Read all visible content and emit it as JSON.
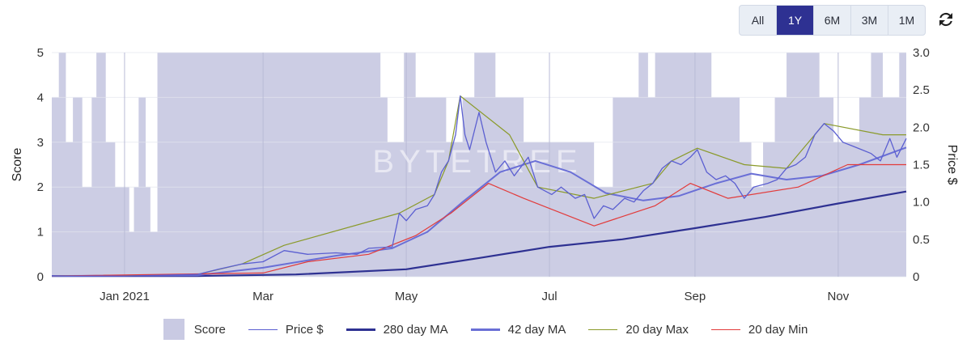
{
  "range_buttons": [
    {
      "label": "All",
      "active": false
    },
    {
      "label": "1Y",
      "active": true
    },
    {
      "label": "6M",
      "active": false
    },
    {
      "label": "3M",
      "active": false
    },
    {
      "label": "1M",
      "active": false
    }
  ],
  "refresh_icon": "refresh-icon",
  "watermark": "BYTETREE",
  "colors": {
    "score_fill": "#c9cae3",
    "price": "#5b5fd1",
    "ma280": "#2e3192",
    "ma42": "#6a6fd6",
    "max20": "#8a9a2a",
    "min20": "#e23b3b"
  },
  "legend": [
    {
      "key": "score",
      "label": "Score"
    },
    {
      "key": "price",
      "label": "Price $"
    },
    {
      "key": "ma280",
      "label": "280 day MA"
    },
    {
      "key": "ma42",
      "label": "42 day MA"
    },
    {
      "key": "max20",
      "label": "20 day Max"
    },
    {
      "key": "min20",
      "label": "20 day Min"
    }
  ],
  "chart_data": {
    "type": "line",
    "xlabel": "",
    "ylabel_left": "Score",
    "ylabel_right": "Price $",
    "x_ticks": [
      "Jan 2021",
      "Mar",
      "May",
      "Jul",
      "Sep",
      "Nov"
    ],
    "x_tick_dates": [
      "2021-01-01",
      "2021-03-01",
      "2021-05-01",
      "2021-07-01",
      "2021-09-01",
      "2021-11-01"
    ],
    "x_range": [
      "2020-12-01",
      "2021-11-30"
    ],
    "ylim_left": [
      0,
      5
    ],
    "ylim_right": [
      0,
      3.0
    ],
    "left_ticks": [
      "0",
      "1",
      "2",
      "3",
      "4",
      "5"
    ],
    "right_ticks": [
      "0",
      "0.5",
      "1.0",
      "1.5",
      "2.0",
      "2.5",
      "3.0"
    ],
    "grid": true,
    "legend_position": "bottom",
    "series": [
      {
        "key": "score",
        "name": "Score",
        "kind": "step-area",
        "axis": "left",
        "points": [
          [
            "2020-12-01",
            4
          ],
          [
            "2020-12-04",
            5
          ],
          [
            "2020-12-07",
            3
          ],
          [
            "2020-12-10",
            4
          ],
          [
            "2020-12-14",
            2
          ],
          [
            "2020-12-18",
            4
          ],
          [
            "2020-12-20",
            5
          ],
          [
            "2020-12-24",
            3
          ],
          [
            "2020-12-28",
            2
          ],
          [
            "2021-01-03",
            1
          ],
          [
            "2021-01-05",
            2
          ],
          [
            "2021-01-07",
            4
          ],
          [
            "2021-01-10",
            2
          ],
          [
            "2021-01-12",
            1
          ],
          [
            "2021-01-15",
            5
          ],
          [
            "2021-04-20",
            4
          ],
          [
            "2021-04-23",
            3
          ],
          [
            "2021-04-30",
            5
          ],
          [
            "2021-05-05",
            4
          ],
          [
            "2021-05-18",
            3
          ],
          [
            "2021-05-25",
            4
          ],
          [
            "2021-05-30",
            5
          ],
          [
            "2021-06-08",
            4
          ],
          [
            "2021-06-20",
            3
          ],
          [
            "2021-07-20",
            2
          ],
          [
            "2021-07-28",
            4
          ],
          [
            "2021-08-08",
            5
          ],
          [
            "2021-08-12",
            4
          ],
          [
            "2021-08-15",
            5
          ],
          [
            "2021-09-08",
            4
          ],
          [
            "2021-09-20",
            3
          ],
          [
            "2021-09-25",
            2
          ],
          [
            "2021-09-30",
            3
          ],
          [
            "2021-10-05",
            4
          ],
          [
            "2021-10-10",
            5
          ],
          [
            "2021-10-24",
            4
          ],
          [
            "2021-10-30",
            3
          ],
          [
            "2021-11-10",
            4
          ],
          [
            "2021-11-15",
            5
          ],
          [
            "2021-11-20",
            4
          ],
          [
            "2021-11-27",
            5
          ],
          [
            "2021-11-30",
            5
          ]
        ]
      },
      {
        "key": "price",
        "name": "Price $",
        "axis": "right",
        "points": [
          [
            "2020-12-01",
            0.01
          ],
          [
            "2021-01-01",
            0.01
          ],
          [
            "2021-02-01",
            0.03
          ],
          [
            "2021-02-10",
            0.1
          ],
          [
            "2021-02-20",
            0.17
          ],
          [
            "2021-03-01",
            0.2
          ],
          [
            "2021-03-10",
            0.35
          ],
          [
            "2021-03-20",
            0.3
          ],
          [
            "2021-04-01",
            0.32
          ],
          [
            "2021-04-10",
            0.3
          ],
          [
            "2021-04-15",
            0.38
          ],
          [
            "2021-04-25",
            0.4
          ],
          [
            "2021-04-28",
            0.85
          ],
          [
            "2021-05-01",
            0.75
          ],
          [
            "2021-05-05",
            0.9
          ],
          [
            "2021-05-10",
            0.95
          ],
          [
            "2021-05-13",
            1.1
          ],
          [
            "2021-05-16",
            1.4
          ],
          [
            "2021-05-19",
            1.55
          ],
          [
            "2021-05-22",
            1.9
          ],
          [
            "2021-05-24",
            2.42
          ],
          [
            "2021-05-26",
            1.9
          ],
          [
            "2021-05-28",
            1.7
          ],
          [
            "2021-06-01",
            2.2
          ],
          [
            "2021-06-04",
            1.8
          ],
          [
            "2021-06-08",
            1.4
          ],
          [
            "2021-06-12",
            1.55
          ],
          [
            "2021-06-16",
            1.35
          ],
          [
            "2021-06-22",
            1.6
          ],
          [
            "2021-06-26",
            1.2
          ],
          [
            "2021-07-02",
            1.1
          ],
          [
            "2021-07-06",
            1.2
          ],
          [
            "2021-07-12",
            1.05
          ],
          [
            "2021-07-16",
            1.1
          ],
          [
            "2021-07-20",
            0.78
          ],
          [
            "2021-07-24",
            0.95
          ],
          [
            "2021-07-28",
            0.9
          ],
          [
            "2021-08-02",
            1.05
          ],
          [
            "2021-08-06",
            1.0
          ],
          [
            "2021-08-10",
            1.15
          ],
          [
            "2021-08-14",
            1.25
          ],
          [
            "2021-08-18",
            1.45
          ],
          [
            "2021-08-22",
            1.55
          ],
          [
            "2021-08-26",
            1.5
          ],
          [
            "2021-08-30",
            1.6
          ],
          [
            "2021-09-02",
            1.7
          ],
          [
            "2021-09-06",
            1.4
          ],
          [
            "2021-09-10",
            1.3
          ],
          [
            "2021-09-14",
            1.35
          ],
          [
            "2021-09-18",
            1.25
          ],
          [
            "2021-09-22",
            1.05
          ],
          [
            "2021-09-26",
            1.2
          ],
          [
            "2021-10-02",
            1.25
          ],
          [
            "2021-10-06",
            1.3
          ],
          [
            "2021-10-10",
            1.45
          ],
          [
            "2021-10-14",
            1.5
          ],
          [
            "2021-10-18",
            1.6
          ],
          [
            "2021-10-22",
            1.9
          ],
          [
            "2021-10-26",
            2.05
          ],
          [
            "2021-10-30",
            1.95
          ],
          [
            "2021-11-03",
            1.8
          ],
          [
            "2021-11-07",
            1.75
          ],
          [
            "2021-11-11",
            1.7
          ],
          [
            "2021-11-15",
            1.65
          ],
          [
            "2021-11-19",
            1.55
          ],
          [
            "2021-11-23",
            1.85
          ],
          [
            "2021-11-26",
            1.6
          ],
          [
            "2021-11-30",
            1.85
          ]
        ]
      },
      {
        "key": "ma280",
        "name": "280 day MA",
        "axis": "right",
        "points": [
          [
            "2020-12-01",
            0.01
          ],
          [
            "2021-02-01",
            0.01
          ],
          [
            "2021-03-15",
            0.03
          ],
          [
            "2021-05-01",
            0.1
          ],
          [
            "2021-06-01",
            0.25
          ],
          [
            "2021-07-01",
            0.4
          ],
          [
            "2021-08-01",
            0.5
          ],
          [
            "2021-09-01",
            0.65
          ],
          [
            "2021-10-01",
            0.8
          ],
          [
            "2021-11-01",
            0.98
          ],
          [
            "2021-11-30",
            1.14
          ]
        ]
      },
      {
        "key": "ma42",
        "name": "42 day MA",
        "axis": "right",
        "points": [
          [
            "2020-12-01",
            0.01
          ],
          [
            "2021-02-01",
            0.02
          ],
          [
            "2021-03-01",
            0.12
          ],
          [
            "2021-04-01",
            0.28
          ],
          [
            "2021-04-25",
            0.38
          ],
          [
            "2021-05-10",
            0.6
          ],
          [
            "2021-05-25",
            1.0
          ],
          [
            "2021-06-10",
            1.4
          ],
          [
            "2021-06-25",
            1.55
          ],
          [
            "2021-07-10",
            1.4
          ],
          [
            "2021-07-25",
            1.12
          ],
          [
            "2021-08-10",
            1.02
          ],
          [
            "2021-08-25",
            1.08
          ],
          [
            "2021-09-10",
            1.25
          ],
          [
            "2021-09-25",
            1.38
          ],
          [
            "2021-10-10",
            1.3
          ],
          [
            "2021-10-25",
            1.35
          ],
          [
            "2021-11-10",
            1.5
          ],
          [
            "2021-11-30",
            1.73
          ]
        ]
      },
      {
        "key": "max20",
        "name": "20 day Max",
        "axis": "right",
        "points": [
          [
            "2020-12-01",
            0.01
          ],
          [
            "2021-02-01",
            0.03
          ],
          [
            "2021-02-20",
            0.17
          ],
          [
            "2021-03-10",
            0.42
          ],
          [
            "2021-04-28",
            0.85
          ],
          [
            "2021-05-13",
            1.1
          ],
          [
            "2021-05-19",
            1.55
          ],
          [
            "2021-05-24",
            2.42
          ],
          [
            "2021-06-14",
            1.9
          ],
          [
            "2021-06-26",
            1.2
          ],
          [
            "2021-07-20",
            1.05
          ],
          [
            "2021-08-14",
            1.25
          ],
          [
            "2021-08-22",
            1.55
          ],
          [
            "2021-09-02",
            1.72
          ],
          [
            "2021-09-22",
            1.5
          ],
          [
            "2021-10-10",
            1.45
          ],
          [
            "2021-10-22",
            1.9
          ],
          [
            "2021-10-26",
            2.05
          ],
          [
            "2021-11-20",
            1.9
          ],
          [
            "2021-11-30",
            1.9
          ]
        ]
      },
      {
        "key": "min20",
        "name": "20 day Min",
        "axis": "right",
        "points": [
          [
            "2020-12-01",
            0.01
          ],
          [
            "2021-03-01",
            0.05
          ],
          [
            "2021-03-20",
            0.2
          ],
          [
            "2021-04-15",
            0.3
          ],
          [
            "2021-05-05",
            0.55
          ],
          [
            "2021-05-20",
            0.85
          ],
          [
            "2021-06-05",
            1.25
          ],
          [
            "2021-06-20",
            1.05
          ],
          [
            "2021-07-20",
            0.68
          ],
          [
            "2021-08-15",
            0.95
          ],
          [
            "2021-08-30",
            1.25
          ],
          [
            "2021-09-15",
            1.05
          ],
          [
            "2021-10-15",
            1.2
          ],
          [
            "2021-11-05",
            1.5
          ],
          [
            "2021-11-30",
            1.5
          ]
        ]
      }
    ]
  }
}
